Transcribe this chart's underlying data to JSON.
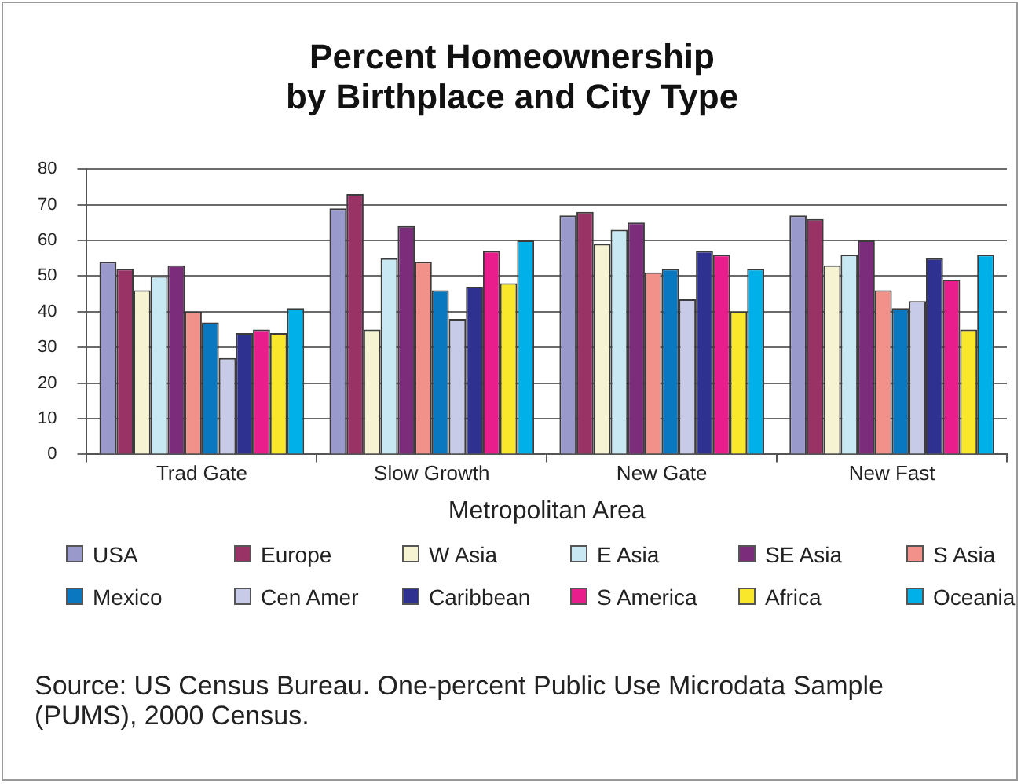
{
  "chart_data": {
    "type": "bar",
    "title": "Percent Homeownership\nby Birthplace and City Type",
    "xlabel": "Metropolitan Area",
    "categories": [
      "Trad Gate",
      "Slow Growth",
      "New Gate",
      "New Fast"
    ],
    "series": [
      {
        "name": "USA",
        "color": "#9999cc",
        "values": [
          54,
          69,
          67,
          67
        ]
      },
      {
        "name": "Europe",
        "color": "#993366",
        "values": [
          52,
          73,
          68,
          66
        ]
      },
      {
        "name": "W Asia",
        "color": "#f5f3d2",
        "values": [
          46,
          35,
          59,
          53
        ]
      },
      {
        "name": "E Asia",
        "color": "#c8e9f3",
        "values": [
          50,
          55,
          63,
          56
        ]
      },
      {
        "name": "SE Asia",
        "color": "#7b2c7b",
        "values": [
          53,
          64,
          65,
          60
        ]
      },
      {
        "name": "S Asia",
        "color": "#f2918a",
        "values": [
          40,
          54,
          51,
          46
        ]
      },
      {
        "name": "Mexico",
        "color": "#0a78c0",
        "values": [
          37,
          46,
          52,
          41
        ]
      },
      {
        "name": "Cen Amer",
        "color": "#c7cbe8",
        "values": [
          27,
          38,
          43.5,
          43
        ]
      },
      {
        "name": "Caribbean",
        "color": "#2e3190",
        "values": [
          34,
          47,
          57,
          55
        ]
      },
      {
        "name": "S America",
        "color": "#e91e8c",
        "values": [
          35,
          57,
          56,
          49
        ]
      },
      {
        "name": "Africa",
        "color": "#f8e72a",
        "values": [
          34,
          48,
          40,
          35
        ]
      },
      {
        "name": "Oceania",
        "color": "#00b1e9",
        "values": [
          41,
          60,
          52,
          56
        ]
      }
    ],
    "ylim": [
      0,
      80
    ],
    "yticks": [
      0,
      10,
      20,
      30,
      40,
      50,
      60,
      70,
      80
    ],
    "grid": "y",
    "legend": "bottom",
    "annotations": [
      "Source: US Census Bureau. One-percent Public Use Microdata Sample (PUMS), 2000 Census."
    ]
  }
}
